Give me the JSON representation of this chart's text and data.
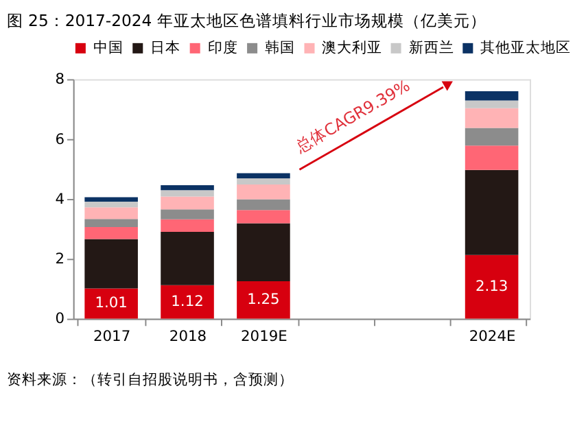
{
  "chart_data": {
    "type": "bar",
    "stacked": true,
    "title": "图 25：2017-2024 年亚太地区色谱填料行业市场规模（亿美元）",
    "categories": [
      "2017",
      "2018",
      "2019E",
      null,
      null,
      "2024E"
    ],
    "series": [
      {
        "name": "中国",
        "color": "#d7000f",
        "values": [
          1.01,
          1.12,
          1.25,
          null,
          null,
          2.13
        ],
        "value_labels": [
          "1.01",
          "1.12",
          "1.25",
          null,
          null,
          "2.13"
        ]
      },
      {
        "name": "日本",
        "color": "#231815",
        "values": [
          1.65,
          1.78,
          1.94,
          null,
          null,
          2.84
        ]
      },
      {
        "name": "印度",
        "color": "#ff6675",
        "values": [
          0.4,
          0.42,
          0.44,
          null,
          null,
          0.81
        ]
      },
      {
        "name": "韩国",
        "color": "#8c8c8c",
        "values": [
          0.27,
          0.33,
          0.36,
          null,
          null,
          0.59
        ]
      },
      {
        "name": "澳大利亚",
        "color": "#ffb3b5",
        "values": [
          0.39,
          0.43,
          0.49,
          null,
          null,
          0.66
        ]
      },
      {
        "name": "新西兰",
        "color": "#c8c8c8",
        "values": [
          0.19,
          0.21,
          0.21,
          null,
          null,
          0.26
        ]
      },
      {
        "name": "其他亚太地区",
        "color": "#0b3264",
        "values": [
          0.15,
          0.17,
          0.17,
          null,
          null,
          0.31
        ]
      }
    ],
    "ylim": [
      0,
      8
    ],
    "yticks": [
      0,
      2,
      4,
      6,
      8
    ],
    "grid": false,
    "legend": "top",
    "annotations": [
      "总体CAGR9.39%",
      "资料来源：（转引自招股说明书，含预测）"
    ]
  }
}
